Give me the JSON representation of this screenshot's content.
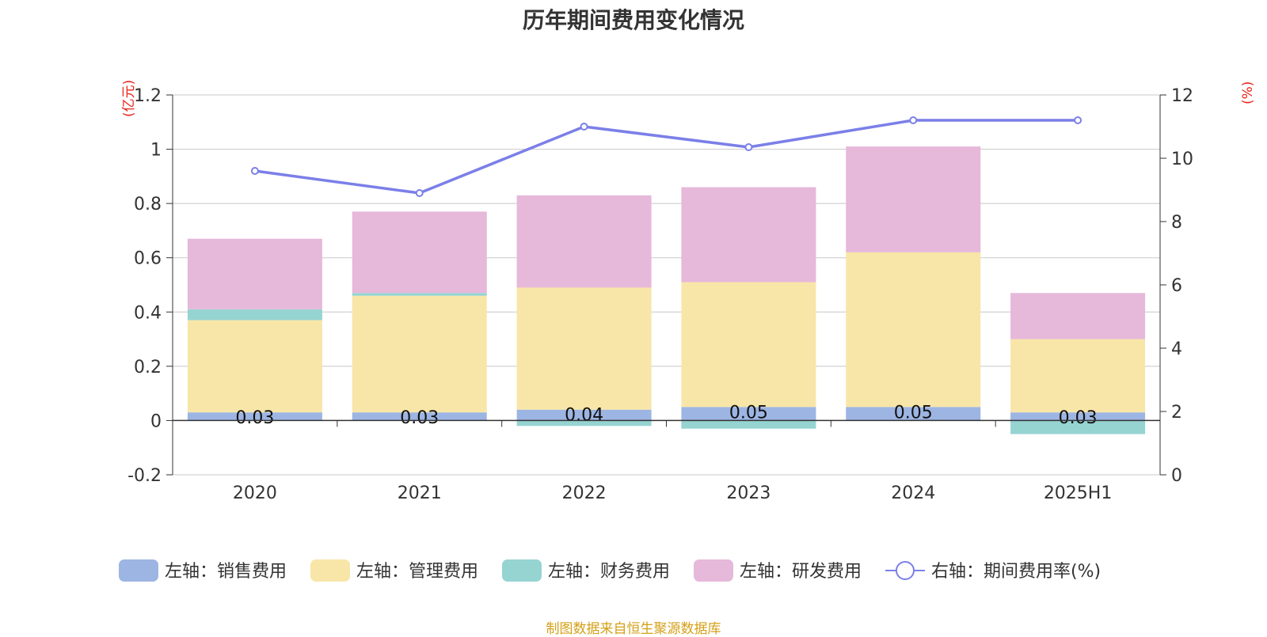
{
  "title": "历年期间费用变化情况",
  "source": "制图数据来自恒生聚源数据库",
  "chart_data": {
    "type": "bar",
    "stacked": true,
    "categories": [
      "2020",
      "2021",
      "2022",
      "2023",
      "2024",
      "2025H1"
    ],
    "y_left": {
      "unit_label": "(亿元)",
      "ylim": [
        -0.2,
        1.2
      ],
      "ticks": [
        "-0.2",
        "0",
        "0.2",
        "0.4",
        "0.6",
        "0.8",
        "1",
        "1.2"
      ]
    },
    "y_right": {
      "unit_label": "(%)",
      "ylim": [
        0,
        12
      ],
      "ticks": [
        "0",
        "2",
        "4",
        "6",
        "8",
        "10",
        "12"
      ]
    },
    "series": [
      {
        "name": "左轴：销售费用",
        "axis": "left",
        "color": "#9db5e3",
        "values": [
          0.03,
          0.03,
          0.04,
          0.05,
          0.05,
          0.03
        ],
        "labels": [
          "0.03",
          "0.03",
          "0.04",
          "0.05",
          "0.05",
          "0.03"
        ]
      },
      {
        "name": "左轴：管理费用",
        "axis": "left",
        "color": "#f8e6a8",
        "values": [
          0.34,
          0.43,
          0.45,
          0.46,
          0.57,
          0.27
        ]
      },
      {
        "name": "左轴：财务费用",
        "axis": "left",
        "color": "#96d4d2",
        "values": [
          0.04,
          0.01,
          -0.02,
          -0.03,
          0.0,
          -0.05
        ]
      },
      {
        "name": "左轴：研发费用",
        "axis": "left",
        "color": "#e6b8d9",
        "values": [
          0.26,
          0.3,
          0.34,
          0.35,
          0.39,
          0.17
        ]
      },
      {
        "name": "右轴：期间费用率(%)",
        "axis": "right",
        "type": "line",
        "color": "#7b7fe8",
        "values": [
          9.6,
          8.9,
          11.0,
          10.35,
          11.2,
          11.2
        ]
      }
    ],
    "legend_position": "bottom",
    "grid": true
  }
}
